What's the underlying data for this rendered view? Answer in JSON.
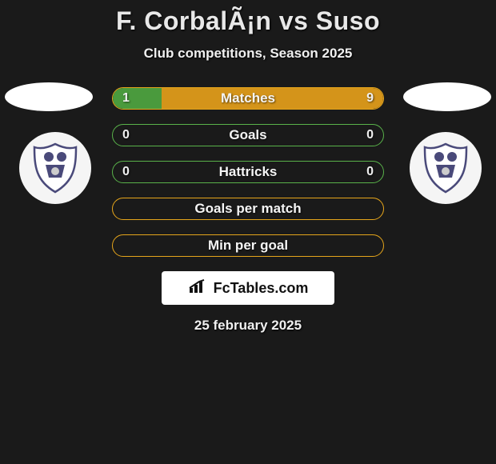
{
  "title": "F. CorbalÃ¡n vs Suso",
  "subtitle": "Club competitions, Season 2025",
  "date": "25 february 2025",
  "watermark": "FcTables.com",
  "colors": {
    "background": "#1a1a1a",
    "bar_border_green": "#59b24a",
    "bar_border_orange": "#e5a51b",
    "fill_green": "#4a9a3d",
    "fill_orange": "#d4941a",
    "text": "#f0f0f0"
  },
  "bars": [
    {
      "label": "Matches",
      "left_value": "1",
      "right_value": "9",
      "left_pct": 18,
      "right_pct": 82,
      "border_color": "#e5a51b",
      "left_fill": "#4a9a3d",
      "right_fill": "#d4941a"
    },
    {
      "label": "Goals",
      "left_value": "0",
      "right_value": "0",
      "left_pct": 0,
      "right_pct": 0,
      "border_color": "#59b24a",
      "left_fill": "#4a9a3d",
      "right_fill": "#d4941a"
    },
    {
      "label": "Hattricks",
      "left_value": "0",
      "right_value": "0",
      "left_pct": 0,
      "right_pct": 0,
      "border_color": "#59b24a",
      "left_fill": "#4a9a3d",
      "right_fill": "#d4941a"
    },
    {
      "label": "Goals per match",
      "left_value": "",
      "right_value": "",
      "left_pct": 0,
      "right_pct": 0,
      "border_color": "#e5a51b",
      "left_fill": "#4a9a3d",
      "right_fill": "#d4941a"
    },
    {
      "label": "Min per goal",
      "left_value": "",
      "right_value": "",
      "left_pct": 0,
      "right_pct": 0,
      "border_color": "#e5a51b",
      "left_fill": "#4a9a3d",
      "right_fill": "#d4941a"
    }
  ]
}
